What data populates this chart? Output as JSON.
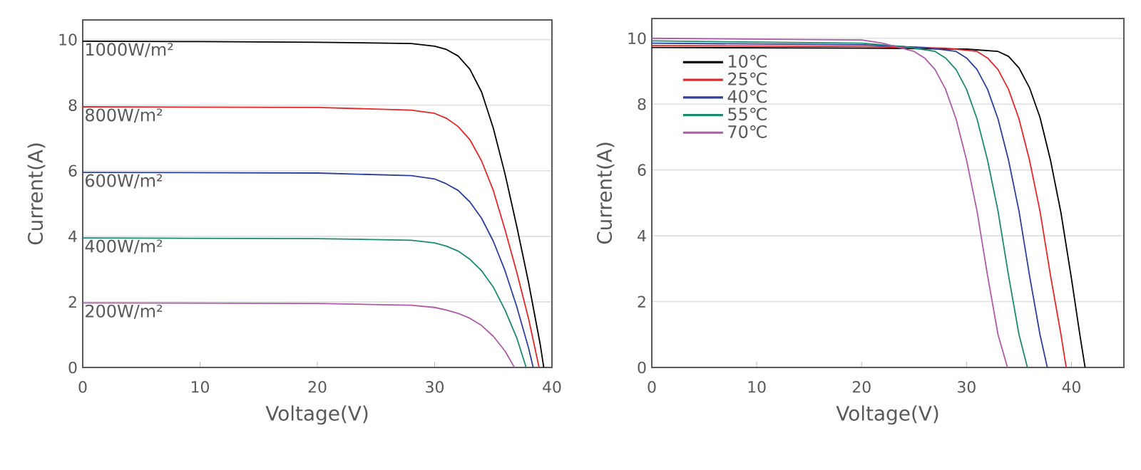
{
  "chart_data": [
    {
      "type": "line",
      "xlabel": "Voltage(V)",
      "ylabel": "Current(A)",
      "xlim": [
        0,
        40
      ],
      "ylim": [
        0,
        10.6
      ],
      "xticks": [
        0,
        10,
        20,
        30,
        40
      ],
      "yticks": [
        0,
        2,
        4,
        6,
        8,
        10
      ],
      "grid": "y",
      "series": [
        {
          "name": "1000W/m²",
          "color": "#000000",
          "x": [
            0,
            10,
            20,
            28,
            30,
            31,
            32,
            33,
            34,
            35,
            36,
            37,
            38,
            39,
            39.3
          ],
          "values": [
            9.95,
            9.94,
            9.92,
            9.88,
            9.8,
            9.7,
            9.5,
            9.1,
            8.4,
            7.3,
            5.9,
            4.3,
            2.6,
            0.7,
            0
          ]
        },
        {
          "name": "800W/m²",
          "color": "#e8262a",
          "x": [
            0,
            20,
            28,
            30,
            31,
            32,
            33,
            34,
            35,
            36,
            37,
            38,
            38.9
          ],
          "values": [
            7.95,
            7.93,
            7.85,
            7.75,
            7.6,
            7.35,
            6.95,
            6.3,
            5.4,
            4.2,
            2.9,
            1.5,
            0
          ]
        },
        {
          "name": "600W/m²",
          "color": "#2c3e9e",
          "x": [
            0,
            20,
            28,
            30,
            31,
            32,
            33,
            34,
            35,
            36,
            37,
            38,
            38.4
          ],
          "values": [
            5.95,
            5.93,
            5.85,
            5.75,
            5.6,
            5.4,
            5.05,
            4.55,
            3.85,
            2.95,
            1.85,
            0.6,
            0
          ]
        },
        {
          "name": "400W/m²",
          "color": "#1a8a70",
          "x": [
            0,
            20,
            28,
            30,
            31,
            32,
            33,
            34,
            35,
            36,
            37,
            37.8
          ],
          "values": [
            3.95,
            3.93,
            3.88,
            3.8,
            3.7,
            3.55,
            3.3,
            2.95,
            2.45,
            1.75,
            0.9,
            0
          ]
        },
        {
          "name": "200W/m²",
          "color": "#b05aaa",
          "x": [
            0,
            20,
            28,
            30,
            31,
            32,
            33,
            34,
            35,
            36,
            36.8
          ],
          "values": [
            1.97,
            1.95,
            1.9,
            1.83,
            1.75,
            1.65,
            1.5,
            1.28,
            0.95,
            0.5,
            0
          ]
        }
      ]
    },
    {
      "type": "line",
      "xlabel": "Voltage(V)",
      "ylabel": "Current(A)",
      "xlim": [
        0,
        45
      ],
      "ylim": [
        0,
        10.6
      ],
      "xticks": [
        0,
        10,
        20,
        30,
        40
      ],
      "yticks": [
        0,
        2,
        4,
        6,
        8,
        10
      ],
      "grid": "y",
      "legend": "top left",
      "series": [
        {
          "name": "10℃",
          "color": "#000000",
          "x": [
            0,
            20,
            30,
            33,
            34,
            35,
            36,
            37,
            38,
            39,
            40,
            40.8,
            41.3
          ],
          "values": [
            9.72,
            9.7,
            9.67,
            9.6,
            9.45,
            9.1,
            8.5,
            7.6,
            6.3,
            4.7,
            2.7,
            1.0,
            0
          ]
        },
        {
          "name": "25℃",
          "color": "#e8262a",
          "x": [
            0,
            20,
            28,
            31,
            32,
            33,
            34,
            35,
            36,
            37,
            38,
            39,
            39.5
          ],
          "values": [
            9.78,
            9.75,
            9.7,
            9.6,
            9.4,
            9.05,
            8.45,
            7.55,
            6.3,
            4.75,
            2.8,
            1.0,
            0
          ]
        },
        {
          "name": "40℃",
          "color": "#2c3e9e",
          "x": [
            0,
            20,
            26,
            29,
            30,
            31,
            32,
            33,
            34,
            35,
            36,
            37,
            37.7
          ],
          "values": [
            9.85,
            9.8,
            9.72,
            9.6,
            9.4,
            9.05,
            8.45,
            7.55,
            6.3,
            4.75,
            2.8,
            1.0,
            0
          ]
        },
        {
          "name": "55℃",
          "color": "#1a8a70",
          "x": [
            0,
            20,
            24,
            27,
            28,
            29,
            30,
            31,
            32,
            33,
            34,
            35,
            35.8
          ],
          "values": [
            9.92,
            9.85,
            9.75,
            9.6,
            9.4,
            9.05,
            8.45,
            7.55,
            6.3,
            4.75,
            2.8,
            1.0,
            0
          ]
        },
        {
          "name": "70℃",
          "color": "#b05aaa",
          "x": [
            0,
            20,
            22,
            25,
            26,
            27,
            28,
            29,
            30,
            31,
            32,
            33,
            33.9
          ],
          "values": [
            10.0,
            9.95,
            9.85,
            9.6,
            9.4,
            9.05,
            8.45,
            7.55,
            6.3,
            4.75,
            2.8,
            1.0,
            0
          ]
        }
      ]
    }
  ]
}
